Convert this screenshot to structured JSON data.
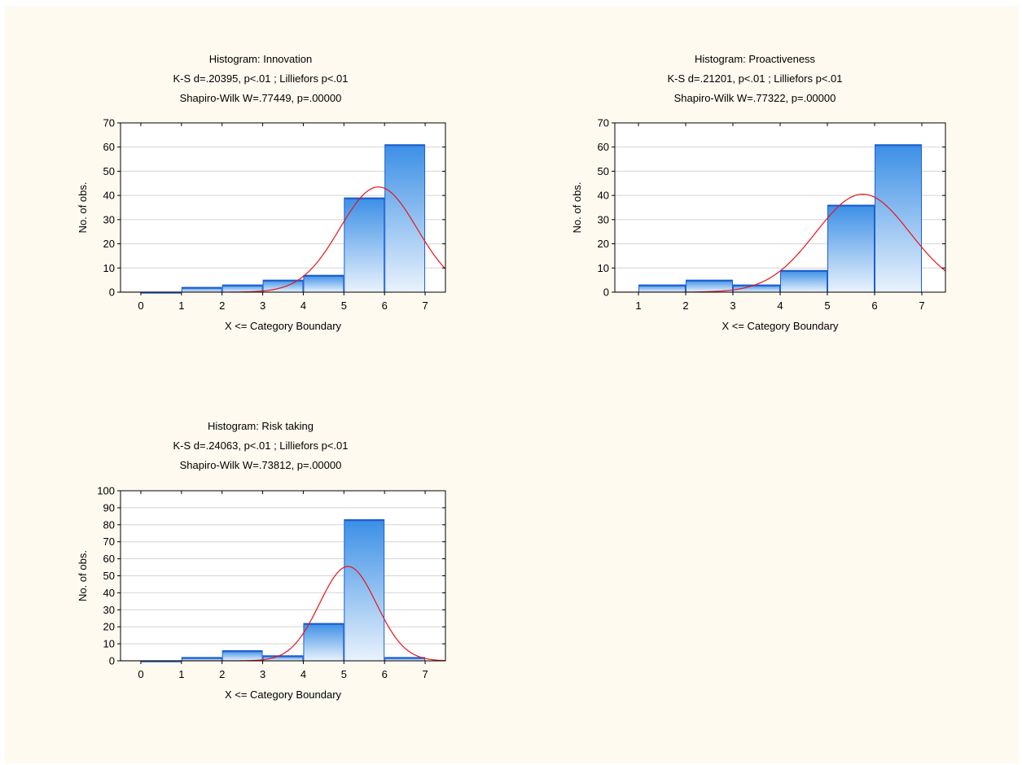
{
  "colors": {
    "background": "#fefaf0",
    "plot_area": "#ffffff",
    "bar_top": "#3b8fe6",
    "bar_bottom": "#e9f2fc",
    "bar_border": "#1c5fd0",
    "normal_curve": "#e8141b",
    "grid": "#d4d4d4"
  },
  "chart_data": [
    {
      "type": "bar",
      "title": "Histogram: Innovation",
      "subtitle": [
        "K-S d=.20395, p<.01 ; Lilliefors p<.01",
        "Shapiro-Wilk W=.77449, p=.00000"
      ],
      "xlabel": "X <= Category Boundary",
      "ylabel": "No. of obs.",
      "xlim": [
        -0.5,
        7.5
      ],
      "ylim": [
        0,
        70
      ],
      "xticks": [
        0,
        1,
        2,
        3,
        4,
        5,
        6,
        7
      ],
      "yticks": [
        0,
        10,
        20,
        30,
        40,
        50,
        60,
        70
      ],
      "grid": true,
      "bins": [
        {
          "from": 0,
          "to": 1,
          "value": 0
        },
        {
          "from": 1,
          "to": 2,
          "value": 2
        },
        {
          "from": 2,
          "to": 3,
          "value": 3
        },
        {
          "from": 3,
          "to": 4,
          "value": 5
        },
        {
          "from": 4,
          "to": 5,
          "value": 7
        },
        {
          "from": 5,
          "to": 6,
          "value": 39
        },
        {
          "from": 6,
          "to": 7,
          "value": 61
        }
      ],
      "normal_curve": {
        "mean": 5.85,
        "sd": 0.95,
        "peak": 43.5
      }
    },
    {
      "type": "bar",
      "title": "Histogram: Proactiveness",
      "subtitle": [
        "K-S d=.21201, p<.01 ; Lilliefors p<.01",
        "Shapiro-Wilk W=.77322, p=.00000"
      ],
      "xlabel": "X <= Category Boundary",
      "ylabel": "No. of obs.",
      "xlim": [
        0.5,
        7.5
      ],
      "ylim": [
        0,
        70
      ],
      "xticks": [
        1,
        2,
        3,
        4,
        5,
        6,
        7
      ],
      "yticks": [
        0,
        10,
        20,
        30,
        40,
        50,
        60,
        70
      ],
      "grid": true,
      "bins": [
        {
          "from": 1,
          "to": 2,
          "value": 3
        },
        {
          "from": 2,
          "to": 3,
          "value": 5
        },
        {
          "from": 3,
          "to": 4,
          "value": 3
        },
        {
          "from": 4,
          "to": 5,
          "value": 9
        },
        {
          "from": 5,
          "to": 6,
          "value": 36
        },
        {
          "from": 6,
          "to": 7,
          "value": 61
        }
      ],
      "normal_curve": {
        "mean": 5.75,
        "sd": 1.0,
        "peak": 40.5
      }
    },
    {
      "type": "bar",
      "title": "Histogram: Risk taking",
      "subtitle": [
        "K-S d=.24063, p<.01 ; Lilliefors p<.01",
        "Shapiro-Wilk W=.73812, p=.00000"
      ],
      "xlabel": "X <= Category Boundary",
      "ylabel": "No. of obs.",
      "xlim": [
        -0.5,
        7.5
      ],
      "ylim": [
        0,
        100
      ],
      "xticks": [
        0,
        1,
        2,
        3,
        4,
        5,
        6,
        7
      ],
      "yticks": [
        0,
        10,
        20,
        30,
        40,
        50,
        60,
        70,
        80,
        90,
        100
      ],
      "grid": true,
      "bins": [
        {
          "from": 0,
          "to": 1,
          "value": 0
        },
        {
          "from": 1,
          "to": 2,
          "value": 2
        },
        {
          "from": 2,
          "to": 3,
          "value": 6
        },
        {
          "from": 3,
          "to": 4,
          "value": 3
        },
        {
          "from": 4,
          "to": 5,
          "value": 22
        },
        {
          "from": 5,
          "to": 6,
          "value": 83
        },
        {
          "from": 6,
          "to": 7,
          "value": 2
        }
      ],
      "normal_curve": {
        "mean": 5.1,
        "sd": 0.7,
        "peak": 55.5
      }
    }
  ]
}
